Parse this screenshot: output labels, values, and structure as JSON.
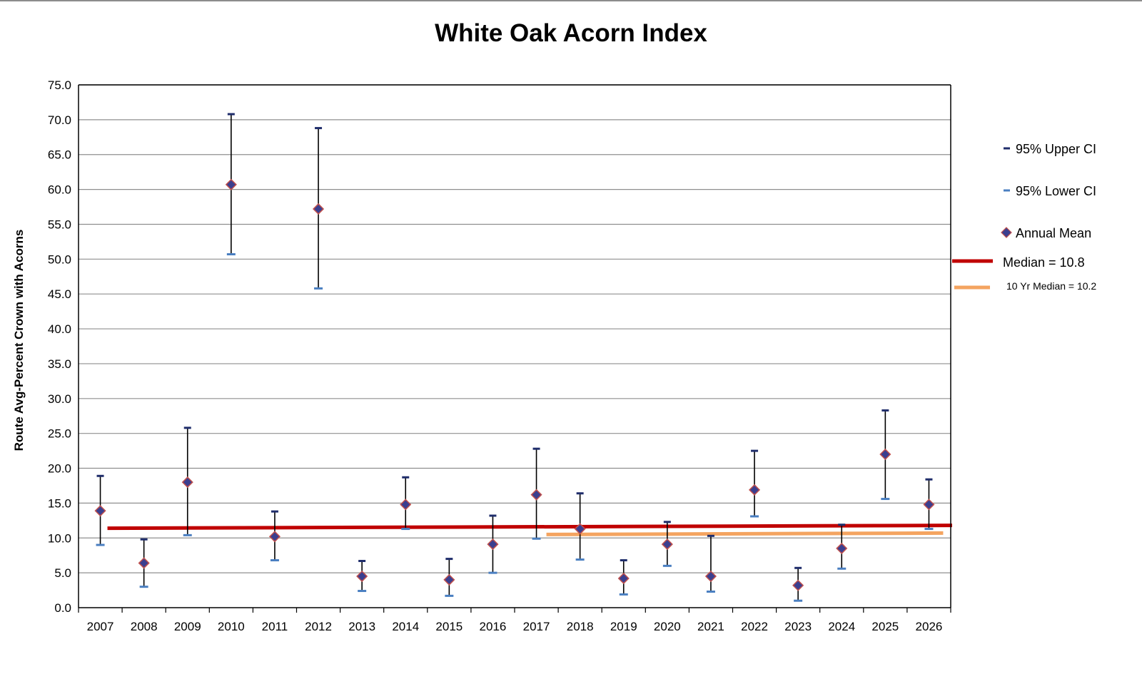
{
  "chart_data": {
    "type": "scatter",
    "title": "White Oak Acorn Index",
    "xlabel": "",
    "ylabel": "Route Avg-Percent Crown with Acorns",
    "ylim": [
      0,
      75
    ],
    "y_ticks": [
      "0.0",
      "5.0",
      "10.0",
      "15.0",
      "20.0",
      "25.0",
      "30.0",
      "35.0",
      "40.0",
      "45.0",
      "50.0",
      "55.0",
      "60.0",
      "65.0",
      "70.0",
      "75.0"
    ],
    "categories": [
      "2007",
      "2008",
      "2009",
      "2010",
      "2011",
      "2012",
      "2013",
      "2014",
      "2015",
      "2016",
      "2017",
      "2018",
      "2019",
      "2020",
      "2021",
      "2022",
      "2023",
      "2024",
      "2025",
      "2026"
    ],
    "grid": "horizontal",
    "legend_position": "right",
    "series": [
      {
        "name": "95% Upper CI",
        "color": "#1f2d6b",
        "values": [
          18.9,
          9.8,
          25.8,
          70.8,
          13.8,
          68.8,
          6.7,
          18.7,
          7.0,
          13.2,
          22.8,
          16.4,
          6.8,
          12.3,
          10.3,
          22.5,
          5.7,
          11.9,
          28.3,
          18.4
        ]
      },
      {
        "name": "95% Lower CI",
        "color": "#4a7fc1",
        "values": [
          9.0,
          3.0,
          10.4,
          50.7,
          6.8,
          45.8,
          2.4,
          11.3,
          1.7,
          5.0,
          9.9,
          6.9,
          1.9,
          6.0,
          2.3,
          13.1,
          1.0,
          5.6,
          15.6,
          11.3
        ]
      },
      {
        "name": "Annual Mean",
        "color": "#3b3f8f",
        "marker": "diamond",
        "marker_edge": "#c0504d",
        "values": [
          13.9,
          6.4,
          18.0,
          60.7,
          10.2,
          57.2,
          4.5,
          14.8,
          4.0,
          9.1,
          16.2,
          11.3,
          4.2,
          9.1,
          4.5,
          16.9,
          3.2,
          8.5,
          22.0,
          14.8
        ]
      }
    ],
    "reference_lines": [
      {
        "label": "Median = 10.8",
        "color": "#c00000",
        "from": "2007",
        "to": "2026",
        "y_start": 11.4,
        "y_end": 11.8
      },
      {
        "label": "10 Yr Median = 10.2",
        "color": "#f4a460",
        "from": "2017",
        "to": "2026",
        "y_start": 10.5,
        "y_end": 10.7
      }
    ],
    "legend": [
      {
        "label": "95% Upper CI",
        "symbol": "dash",
        "color": "#1f2d6b"
      },
      {
        "label": "95% Lower CI",
        "symbol": "dash",
        "color": "#4a7fc1"
      },
      {
        "label": "Annual Mean",
        "symbol": "diamond",
        "color": "#3b3f8f"
      },
      {
        "label": "Median = 10.8",
        "symbol": "line",
        "color": "#c00000"
      },
      {
        "label": "10 Yr Median = 10.2",
        "symbol": "line",
        "color": "#f4a460"
      }
    ]
  }
}
